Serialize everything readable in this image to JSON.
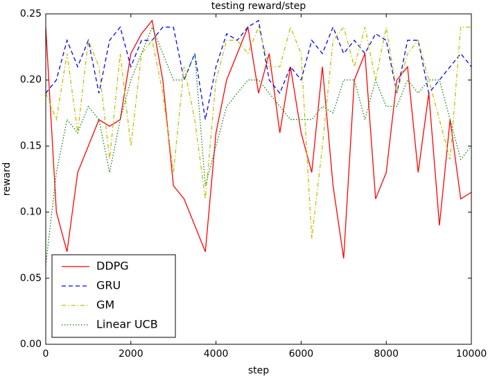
{
  "chart_data": {
    "type": "line",
    "title": "testing reward/step",
    "x_label": "step",
    "y_label": "reward",
    "x": [
      0,
      250,
      500,
      750,
      1000,
      1250,
      1500,
      1750,
      2000,
      2250,
      2500,
      2750,
      3000,
      3250,
      3500,
      3750,
      4000,
      4250,
      4500,
      4750,
      5000,
      5250,
      5500,
      5750,
      6000,
      6250,
      6500,
      6750,
      7000,
      7250,
      7500,
      7750,
      8000,
      8250,
      8500,
      8750,
      9000,
      9250,
      9500,
      9750,
      10000
    ],
    "series": [
      {
        "name": "DDPG",
        "color": "#ff0000",
        "linestyle": "solid",
        "values": [
          0.24,
          0.1,
          0.07,
          0.13,
          0.15,
          0.17,
          0.165,
          0.17,
          0.22,
          0.235,
          0.245,
          0.2,
          0.12,
          0.11,
          0.09,
          0.07,
          0.16,
          0.2,
          0.22,
          0.24,
          0.19,
          0.22,
          0.16,
          0.21,
          0.16,
          0.13,
          0.21,
          0.12,
          0.065,
          0.2,
          0.22,
          0.11,
          0.13,
          0.2,
          0.21,
          0.13,
          0.19,
          0.09,
          0.17,
          0.11,
          0.115
        ]
      },
      {
        "name": "GRU",
        "color": "#0000ff",
        "linestyle": "dashed",
        "values": [
          0.19,
          0.2,
          0.23,
          0.21,
          0.23,
          0.19,
          0.23,
          0.24,
          0.21,
          0.23,
          0.23,
          0.24,
          0.24,
          0.2,
          0.22,
          0.17,
          0.21,
          0.235,
          0.23,
          0.24,
          0.245,
          0.2,
          0.19,
          0.21,
          0.2,
          0.23,
          0.22,
          0.24,
          0.22,
          0.23,
          0.22,
          0.235,
          0.23,
          0.19,
          0.23,
          0.23,
          0.19,
          0.2,
          0.21,
          0.22,
          0.21
        ]
      },
      {
        "name": "GM",
        "color": "#bfbf00",
        "linestyle": "dashdot",
        "values": [
          0.19,
          0.17,
          0.22,
          0.16,
          0.23,
          0.21,
          0.14,
          0.22,
          0.15,
          0.22,
          0.23,
          0.19,
          0.13,
          0.21,
          0.17,
          0.11,
          0.2,
          0.23,
          0.23,
          0.22,
          0.24,
          0.21,
          0.21,
          0.24,
          0.22,
          0.08,
          0.15,
          0.23,
          0.24,
          0.21,
          0.24,
          0.2,
          0.24,
          0.19,
          0.22,
          0.23,
          0.2,
          0.17,
          0.14,
          0.24,
          0.24
        ]
      },
      {
        "name": "Linear UCB",
        "color": "#008000",
        "linestyle": "dotted",
        "values": [
          0.06,
          0.13,
          0.17,
          0.16,
          0.18,
          0.17,
          0.13,
          0.17,
          0.2,
          0.22,
          0.24,
          0.22,
          0.2,
          0.2,
          0.22,
          0.12,
          0.15,
          0.18,
          0.19,
          0.2,
          0.2,
          0.19,
          0.18,
          0.17,
          0.17,
          0.17,
          0.18,
          0.175,
          0.2,
          0.2,
          0.17,
          0.2,
          0.18,
          0.18,
          0.2,
          0.19,
          0.2,
          0.2,
          0.17,
          0.14,
          0.15
        ]
      }
    ],
    "xlim": [
      0,
      10000
    ],
    "xticks": [
      0,
      2000,
      4000,
      6000,
      8000,
      10000
    ],
    "ylim": [
      0,
      0.25
    ],
    "yticks": [
      {
        "value": 0,
        "label": "0.00"
      },
      0.05,
      {
        "value": 0.1,
        "label": "0.10"
      },
      0.15,
      {
        "value": 0.2,
        "label": "0.20"
      },
      0.25
    ],
    "legend": "lower left"
  }
}
